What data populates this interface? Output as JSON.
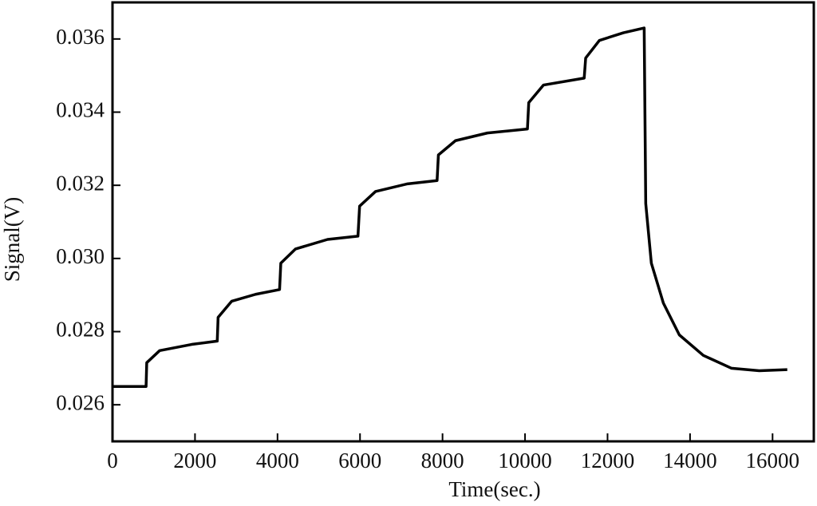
{
  "chart_data": {
    "type": "line",
    "xlabel": "Time(sec.)",
    "ylabel": "Signal(V)",
    "xlim": [
      0,
      17000
    ],
    "ylim": [
      0.025,
      0.037
    ],
    "xticks": [
      0,
      2000,
      4000,
      6000,
      8000,
      10000,
      12000,
      14000,
      16000
    ],
    "yticks": [
      0.026,
      0.028,
      {
        "value": 0.03,
        "label": "0.030"
      },
      0.032,
      0.034,
      0.036
    ],
    "grid": false,
    "series": [
      {
        "name": "Signal",
        "color": "#000000",
        "x": [
          0,
          814,
          830,
          1143,
          1919,
          2539,
          2560,
          2888,
          3469,
          4050,
          4080,
          4438,
          5213,
          5950,
          5990,
          6376,
          7151,
          7868,
          7900,
          8314,
          9089,
          10058,
          10090,
          10446,
          11434,
          11470,
          11802,
          12384,
          12888,
          12926,
          13062,
          13353,
          13740,
          14322,
          15000,
          15678,
          16357
        ],
        "values": [
          0.0265,
          0.0265,
          0.02715,
          0.02748,
          0.02765,
          0.02774,
          0.02839,
          0.02883,
          0.02902,
          0.02915,
          0.02987,
          0.03026,
          0.03052,
          0.03061,
          0.03143,
          0.03183,
          0.03204,
          0.03213,
          0.03283,
          0.03322,
          0.03343,
          0.03354,
          0.03426,
          0.03474,
          0.03493,
          0.03548,
          0.03596,
          0.03617,
          0.0363,
          0.0315,
          0.02987,
          0.02878,
          0.02791,
          0.02735,
          0.027,
          0.02693,
          0.02696
        ]
      }
    ]
  }
}
